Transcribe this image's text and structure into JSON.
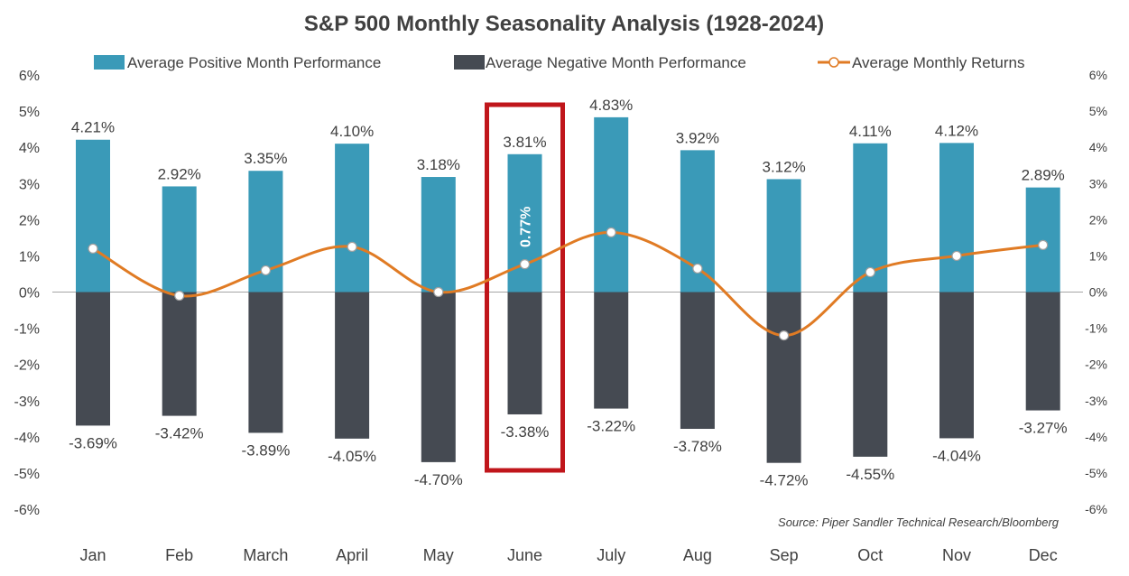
{
  "chart_data": {
    "type": "bar",
    "title": "S&P 500 Monthly Seasonality Analysis (1928-2024)",
    "categories": [
      "Jan",
      "Feb",
      "March",
      "April",
      "May",
      "June",
      "July",
      "Aug",
      "Sep",
      "Oct",
      "Nov",
      "Dec"
    ],
    "series": [
      {
        "name": "Average Positive Month Performance",
        "kind": "bar",
        "color": "#3a9ab8",
        "values": [
          4.21,
          2.92,
          3.35,
          4.1,
          3.18,
          3.81,
          4.83,
          3.92,
          3.12,
          4.11,
          4.12,
          2.89
        ],
        "labels": [
          "4.21%",
          "2.92%",
          "3.35%",
          "4.10%",
          "3.18%",
          "3.81%",
          "4.83%",
          "3.92%",
          "3.12%",
          "4.11%",
          "4.12%",
          "2.89%"
        ]
      },
      {
        "name": "Average Negative Month Performance",
        "kind": "bar",
        "color": "#454a52",
        "values": [
          -3.69,
          -3.42,
          -3.89,
          -4.05,
          -4.7,
          -3.38,
          -3.22,
          -3.78,
          -4.72,
          -4.55,
          -4.04,
          -3.27
        ],
        "labels": [
          "-3.69%",
          "-3.42%",
          "-3.89%",
          "-4.05%",
          "-4.70%",
          "-3.38%",
          "-3.22%",
          "-3.78%",
          "-4.72%",
          "-4.55%",
          "-4.04%",
          "-3.27%"
        ]
      },
      {
        "name": "Average Monthly Returns",
        "kind": "line",
        "color": "#e07b24",
        "values": [
          1.2,
          -0.1,
          0.6,
          1.25,
          0.0,
          0.77,
          1.65,
          0.65,
          -1.2,
          0.55,
          1.0,
          1.3
        ]
      }
    ],
    "ylim": [
      -6,
      6
    ],
    "yticks": [
      6,
      5,
      4,
      3,
      2,
      1,
      0,
      -1,
      -2,
      -3,
      -4,
      -5,
      -6
    ],
    "ytick_labels": [
      "6%",
      "5%",
      "4%",
      "3%",
      "2%",
      "1%",
      "0%",
      "-1%",
      "-2%",
      "-3%",
      "-4%",
      "-5%",
      "-6%"
    ],
    "highlight": {
      "category": "June",
      "label": "0.77%",
      "color": "#c0161b"
    },
    "legend_position": "top",
    "grid": false,
    "source": "Source: Piper Sandler Technical Research/Bloomberg"
  }
}
